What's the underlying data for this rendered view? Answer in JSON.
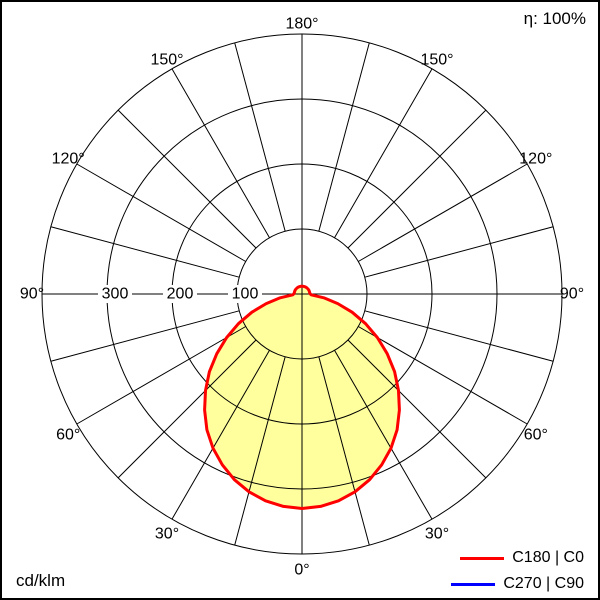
{
  "chart_data": {
    "type": "polar",
    "units_label": "cd/klm",
    "efficiency_label": "η: 100%",
    "r_max": 400,
    "angle_grid_step_deg": 15,
    "gamma_step_deg": 5,
    "radial_ticks": [
      {
        "value": 100,
        "label": "100"
      },
      {
        "value": 200,
        "label": "200"
      },
      {
        "value": 300,
        "label": "300"
      }
    ],
    "angle_labels": [
      {
        "deg": 0,
        "label": "0°"
      },
      {
        "deg": 30,
        "label": "30°"
      },
      {
        "deg": 60,
        "label": "60°"
      },
      {
        "deg": 90,
        "label": "90°"
      },
      {
        "deg": 120,
        "label": "120°"
      },
      {
        "deg": 150,
        "label": "150°"
      },
      {
        "deg": 180,
        "label": "180°"
      }
    ],
    "series": [
      {
        "name": "C180 | C0",
        "color": "#ff0000",
        "fill": "#ffff9e",
        "gamma_start_deg": 0,
        "values": [
          330,
          328,
          323,
          315,
          304,
          290,
          274,
          255,
          233,
          210,
          186,
          160,
          134,
          108,
          82,
          57,
          34,
          14,
          13,
          12,
          12,
          12,
          12,
          12,
          12,
          12,
          12,
          12,
          12,
          12,
          12,
          12,
          12,
          12,
          12,
          12,
          12
        ]
      },
      {
        "name": "C270 | C90",
        "color": "#0000ff",
        "fill": "none",
        "gamma_start_deg": 0,
        "values": [
          330,
          328,
          323,
          315,
          304,
          290,
          274,
          255,
          233,
          210,
          186,
          160,
          134,
          108,
          82,
          57,
          34,
          14,
          13,
          12,
          12,
          12,
          12,
          12,
          12,
          12,
          12,
          12,
          12,
          12,
          12,
          12,
          12,
          12,
          12,
          12,
          12
        ]
      }
    ],
    "legend": [
      {
        "label": "C180 | C0",
        "color": "#ff0000"
      },
      {
        "label": "C270 | C90",
        "color": "#0000ff"
      }
    ]
  }
}
